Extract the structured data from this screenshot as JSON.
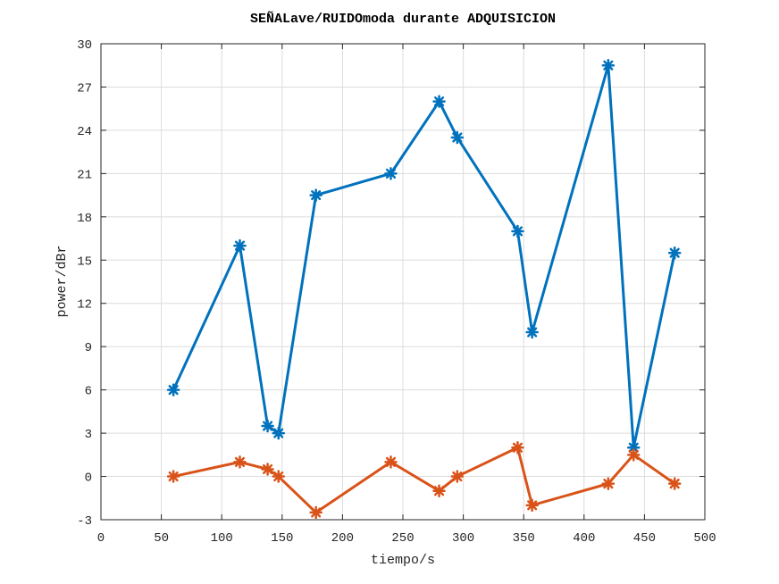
{
  "chart_data": {
    "type": "line",
    "title": "SEÑALave/RUIDOmoda durante ADQUISICION",
    "xlabel": "tiempo/s",
    "ylabel": "power/dBr",
    "xlim": [
      0,
      500
    ],
    "ylim": [
      -3,
      30
    ],
    "xticks": [
      "0",
      "50",
      "100",
      "150",
      "200",
      "250",
      "300",
      "350",
      "400",
      "450",
      "500"
    ],
    "yticks": [
      "-3",
      "0",
      "3",
      "6",
      "9",
      "12",
      "15",
      "18",
      "21",
      "24",
      "27",
      "30"
    ],
    "grid": true,
    "legend": null,
    "marker": "asterisk",
    "series": [
      {
        "color": "#0072bd",
        "x": [
          60,
          115,
          138,
          147,
          178,
          240,
          280,
          295,
          345,
          357,
          420,
          441,
          475
        ],
        "y": [
          6,
          16,
          3.5,
          3,
          19.5,
          21,
          26,
          23.5,
          17,
          10,
          28.5,
          2,
          15.5
        ]
      },
      {
        "color": "#d95319",
        "x": [
          60,
          115,
          138,
          147,
          178,
          240,
          280,
          295,
          345,
          357,
          420,
          441,
          475
        ],
        "y": [
          0,
          1,
          0.5,
          0,
          -2.5,
          1,
          -1,
          0,
          2,
          -2,
          -0.5,
          1.5,
          -0.5
        ]
      }
    ]
  },
  "colors": {
    "axis": "#262626",
    "grid": "#dcdcdc",
    "background": "#ffffff"
  }
}
